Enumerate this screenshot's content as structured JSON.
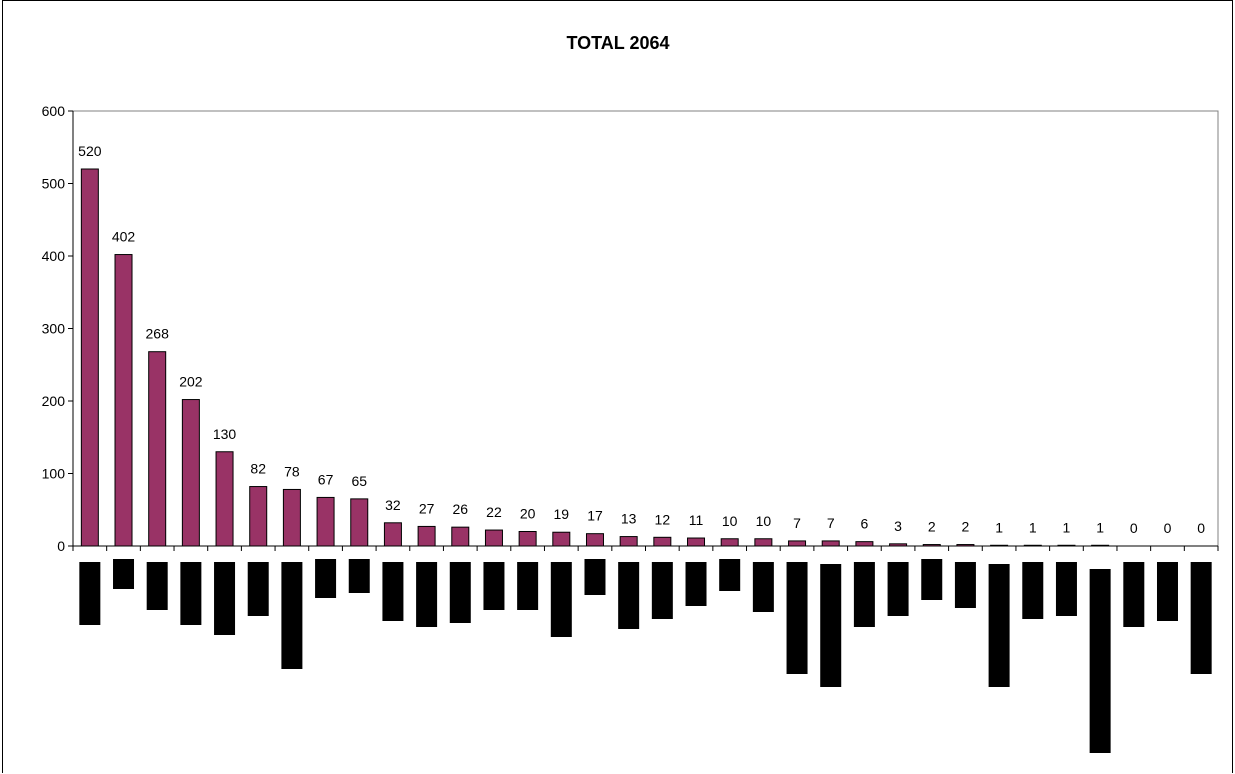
{
  "chart_data": {
    "type": "bar",
    "title": "TOTAL 2064",
    "xlabel": "",
    "ylabel": "",
    "ylim": [
      0,
      600
    ],
    "yticks": [
      0,
      100,
      200,
      300,
      400,
      500,
      600
    ],
    "grid": false,
    "legend": "none",
    "colors": {
      "bar_fill": "#993366",
      "bar_stroke": "#000000",
      "redaction": "#000000"
    },
    "values": [
      520,
      402,
      268,
      202,
      130,
      82,
      78,
      67,
      65,
      32,
      27,
      26,
      22,
      20,
      19,
      17,
      13,
      12,
      11,
      10,
      10,
      7,
      7,
      6,
      3,
      2,
      2,
      1,
      1,
      1,
      1,
      0,
      0,
      0
    ],
    "category_labels": "redacted (black boxes below axis)"
  }
}
